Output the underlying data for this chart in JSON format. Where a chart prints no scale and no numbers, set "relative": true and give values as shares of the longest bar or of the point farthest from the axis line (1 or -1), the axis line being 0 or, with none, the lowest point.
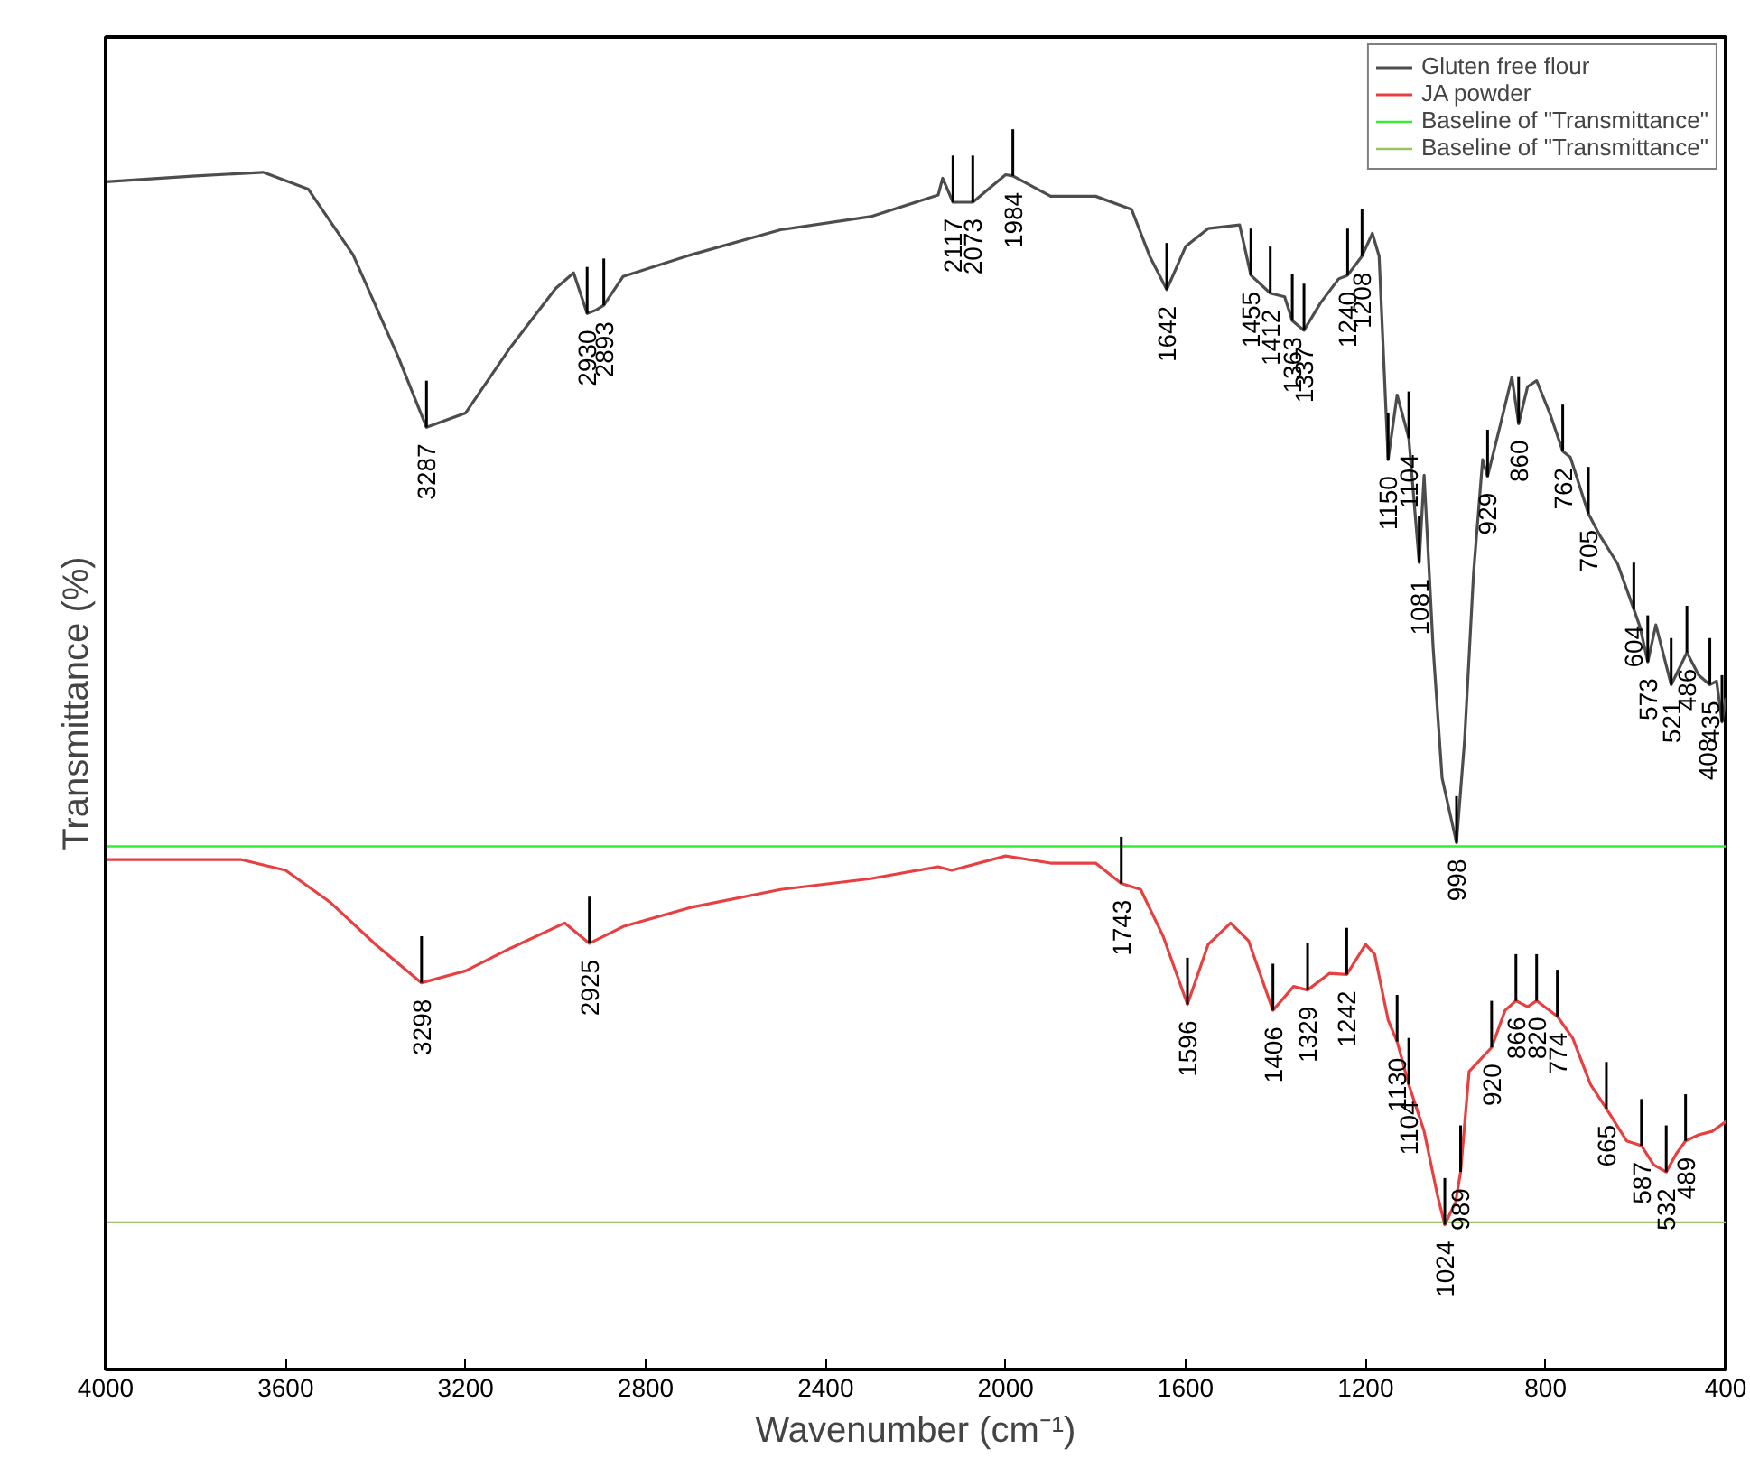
{
  "chart_data": {
    "type": "line",
    "relative": true,
    "xlabel": "Wavenumber (cm⁻¹)",
    "ylabel": "Transmittance (%)",
    "xlim": [
      4000,
      400
    ],
    "xticks": [
      4000,
      3600,
      3200,
      2800,
      2400,
      2000,
      1600,
      1200,
      800,
      400
    ],
    "legend": "top right",
    "grid": false,
    "tick_labels": "x",
    "series": [
      {
        "name": "Gluten free flour",
        "color": "#4d4d4d",
        "x": [
          4000,
          3800,
          3650,
          3550,
          3450,
          3350,
          3287,
          3200,
          3100,
          3000,
          2960,
          2930,
          2910,
          2893,
          2850,
          2700,
          2500,
          2300,
          2150,
          2140,
          2117,
          2073,
          2000,
          1984,
          1900,
          1800,
          1720,
          1680,
          1642,
          1600,
          1550,
          1480,
          1455,
          1412,
          1380,
          1363,
          1337,
          1300,
          1260,
          1240,
          1208,
          1185,
          1170,
          1150,
          1130,
          1104,
          1081,
          1070,
          1050,
          1030,
          998,
          980,
          960,
          940,
          929,
          900,
          875,
          860,
          840,
          820,
          790,
          762,
          745,
          705,
          680,
          640,
          604,
          590,
          573,
          555,
          521,
          500,
          486,
          460,
          435,
          420,
          408,
          400
        ],
        "values": [
          0.992,
          0.997,
          1.0,
          0.986,
          0.931,
          0.846,
          0.787,
          0.799,
          0.854,
          0.903,
          0.916,
          0.882,
          0.885,
          0.889,
          0.913,
          0.931,
          0.952,
          0.963,
          0.981,
          0.995,
          0.975,
          0.975,
          0.998,
          0.997,
          0.98,
          0.98,
          0.969,
          0.93,
          0.902,
          0.938,
          0.953,
          0.956,
          0.914,
          0.899,
          0.896,
          0.876,
          0.868,
          0.891,
          0.911,
          0.914,
          0.93,
          0.949,
          0.93,
          0.76,
          0.814,
          0.778,
          0.674,
          0.747,
          0.603,
          0.494,
          0.44,
          0.526,
          0.666,
          0.76,
          0.746,
          0.79,
          0.829,
          0.79,
          0.821,
          0.826,
          0.798,
          0.767,
          0.762,
          0.715,
          0.697,
          0.673,
          0.635,
          0.62,
          0.591,
          0.622,
          0.572,
          0.588,
          0.599,
          0.58,
          0.572,
          0.575,
          0.541,
          0.56
        ]
      },
      {
        "name": "JA powder",
        "color": "#e84040",
        "x": [
          4000,
          3700,
          3600,
          3500,
          3400,
          3298,
          3200,
          3100,
          2980,
          2925,
          2850,
          2700,
          2500,
          2300,
          2150,
          2120,
          2000,
          1900,
          1800,
          1743,
          1700,
          1650,
          1596,
          1550,
          1500,
          1460,
          1406,
          1360,
          1329,
          1280,
          1242,
          1200,
          1180,
          1150,
          1130,
          1104,
          1070,
          1040,
          1024,
          1000,
          989,
          970,
          940,
          920,
          890,
          866,
          840,
          820,
          774,
          740,
          700,
          665,
          620,
          587,
          560,
          532,
          510,
          489,
          460,
          430,
          400
        ],
        "values": [
          0.426,
          0.426,
          0.417,
          0.39,
          0.355,
          0.323,
          0.333,
          0.352,
          0.373,
          0.356,
          0.37,
          0.386,
          0.401,
          0.41,
          0.42,
          0.417,
          0.429,
          0.423,
          0.423,
          0.406,
          0.401,
          0.362,
          0.305,
          0.355,
          0.373,
          0.358,
          0.3,
          0.32,
          0.317,
          0.331,
          0.33,
          0.355,
          0.347,
          0.292,
          0.274,
          0.238,
          0.199,
          0.145,
          0.121,
          0.14,
          0.165,
          0.249,
          0.261,
          0.269,
          0.3,
          0.308,
          0.303,
          0.308,
          0.295,
          0.277,
          0.238,
          0.218,
          0.191,
          0.187,
          0.171,
          0.165,
          0.18,
          0.191,
          0.196,
          0.199,
          0.207
        ]
      },
      {
        "name": "Baseline of \"Transmittance\"",
        "color": "#33ee33",
        "x": [
          4000,
          400
        ],
        "values": [
          0.437,
          0.437
        ]
      },
      {
        "name": "Baseline of \"Transmittance\"",
        "color": "#99c266",
        "x": [
          4000,
          400
        ],
        "values": [
          0.123,
          0.123
        ]
      }
    ],
    "annotations": [
      {
        "text": "3287",
        "x": 3287,
        "y": 0.787
      },
      {
        "text": "2930",
        "x": 2930,
        "y": 0.882
      },
      {
        "text": "2893",
        "x": 2893,
        "y": 0.889
      },
      {
        "text": "2117",
        "x": 2117,
        "y": 0.975
      },
      {
        "text": "2073",
        "x": 2073,
        "y": 0.975
      },
      {
        "text": "1984",
        "x": 1984,
        "y": 0.997
      },
      {
        "text": "1642",
        "x": 1642,
        "y": 0.902
      },
      {
        "text": "1455",
        "x": 1455,
        "y": 0.914
      },
      {
        "text": "1412",
        "x": 1412,
        "y": 0.899
      },
      {
        "text": "1363",
        "x": 1363,
        "y": 0.876
      },
      {
        "text": "1337",
        "x": 1337,
        "y": 0.868
      },
      {
        "text": "1240",
        "x": 1240,
        "y": 0.914
      },
      {
        "text": "1208",
        "x": 1208,
        "y": 0.93
      },
      {
        "text": "1150",
        "x": 1150,
        "y": 0.76
      },
      {
        "text": "1104",
        "x": 1104,
        "y": 0.778
      },
      {
        "text": "1081",
        "x": 1081,
        "y": 0.674
      },
      {
        "text": "998",
        "x": 998,
        "y": 0.44
      },
      {
        "text": "929",
        "x": 929,
        "y": 0.746
      },
      {
        "text": "860",
        "x": 860,
        "y": 0.79
      },
      {
        "text": "762",
        "x": 762,
        "y": 0.767
      },
      {
        "text": "705",
        "x": 705,
        "y": 0.715
      },
      {
        "text": "604",
        "x": 604,
        "y": 0.635
      },
      {
        "text": "573",
        "x": 573,
        "y": 0.591
      },
      {
        "text": "521",
        "x": 521,
        "y": 0.572
      },
      {
        "text": "486",
        "x": 486,
        "y": 0.599
      },
      {
        "text": "435",
        "x": 435,
        "y": 0.572
      },
      {
        "text": "408",
        "x": 408,
        "y": 0.541
      },
      {
        "text": "3298",
        "x": 3298,
        "y": 0.323
      },
      {
        "text": "2925",
        "x": 2925,
        "y": 0.356
      },
      {
        "text": "1743",
        "x": 1743,
        "y": 0.406
      },
      {
        "text": "1596",
        "x": 1596,
        "y": 0.305
      },
      {
        "text": "1406",
        "x": 1406,
        "y": 0.3
      },
      {
        "text": "1329",
        "x": 1329,
        "y": 0.317
      },
      {
        "text": "1242",
        "x": 1242,
        "y": 0.33
      },
      {
        "text": "1130",
        "x": 1130,
        "y": 0.274
      },
      {
        "text": "1104",
        "x": 1104,
        "y": 0.238
      },
      {
        "text": "1024",
        "x": 1024,
        "y": 0.121
      },
      {
        "text": "989",
        "x": 989,
        "y": 0.165
      },
      {
        "text": "920",
        "x": 920,
        "y": 0.269
      },
      {
        "text": "866",
        "x": 866,
        "y": 0.308
      },
      {
        "text": "820",
        "x": 820,
        "y": 0.308
      },
      {
        "text": "774",
        "x": 774,
        "y": 0.295
      },
      {
        "text": "665",
        "x": 665,
        "y": 0.218
      },
      {
        "text": "587",
        "x": 587,
        "y": 0.187
      },
      {
        "text": "532",
        "x": 532,
        "y": 0.165
      },
      {
        "text": "489",
        "x": 489,
        "y": 0.191
      }
    ]
  }
}
